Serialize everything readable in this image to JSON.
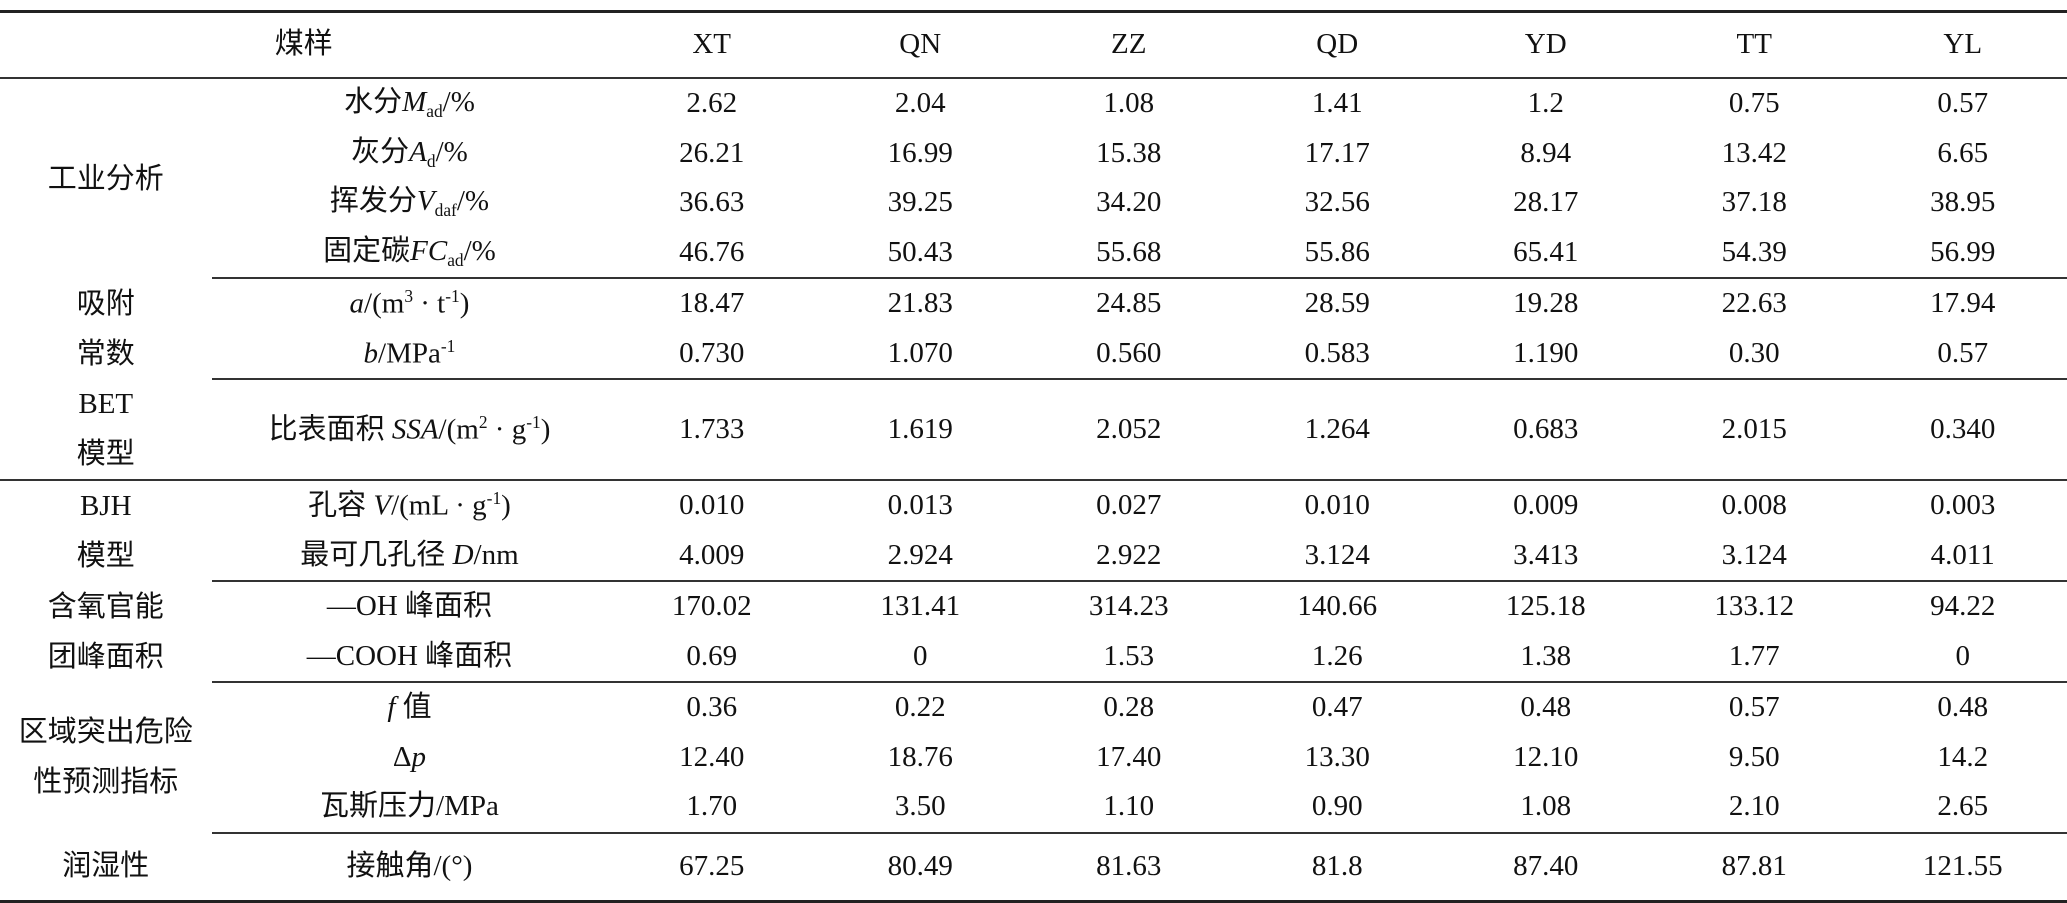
{
  "header": {
    "label": "煤样",
    "samples": [
      "XT",
      "QN",
      "ZZ",
      "QD",
      "YD",
      "TT",
      "YL"
    ]
  },
  "sections": [
    {
      "group": [
        "工业分析"
      ],
      "rows": [
        {
          "label": [
            {
              "t": "水分"
            },
            {
              "t": "M",
              "i": true
            },
            {
              "t": "ad",
              "sub": true
            },
            {
              "t": "/%"
            }
          ],
          "values": [
            "2.62",
            "2.04",
            "1.08",
            "1.41",
            "1.2",
            "0.75",
            "0.57"
          ]
        },
        {
          "label": [
            {
              "t": "灰分"
            },
            {
              "t": "A",
              "i": true
            },
            {
              "t": "d",
              "sub": true
            },
            {
              "t": "/%"
            }
          ],
          "values": [
            "26.21",
            "16.99",
            "15.38",
            "17.17",
            "8.94",
            "13.42",
            "6.65"
          ]
        },
        {
          "label": [
            {
              "t": "挥发分"
            },
            {
              "t": "V",
              "i": true
            },
            {
              "t": "daf",
              "sub": true
            },
            {
              "t": "/%"
            }
          ],
          "values": [
            "36.63",
            "39.25",
            "34.20",
            "32.56",
            "28.17",
            "37.18",
            "38.95"
          ]
        },
        {
          "label": [
            {
              "t": "固定碳"
            },
            {
              "t": "FC",
              "i": true
            },
            {
              "t": "ad",
              "sub": true
            },
            {
              "t": "/%"
            }
          ],
          "values": [
            "46.76",
            "50.43",
            "55.68",
            "55.86",
            "65.41",
            "54.39",
            "56.99"
          ]
        }
      ]
    },
    {
      "group": [
        "吸附",
        "常数"
      ],
      "rows": [
        {
          "label": [
            {
              "t": "a",
              "i": true
            },
            {
              "t": "/(m"
            },
            {
              "t": "3",
              "sup": true
            },
            {
              "t": " · t"
            },
            {
              "t": "-1",
              "sup": true
            },
            {
              "t": ")"
            }
          ],
          "values": [
            "18.47",
            "21.83",
            "24.85",
            "28.59",
            "19.28",
            "22.63",
            "17.94"
          ]
        },
        {
          "label": [
            {
              "t": "b",
              "i": true
            },
            {
              "t": "/MPa"
            },
            {
              "t": "-1",
              "sup": true
            }
          ],
          "values": [
            "0.730",
            "1.070",
            "0.560",
            "0.583",
            "1.190",
            "0.30",
            "0.57"
          ]
        }
      ]
    },
    {
      "group": [
        "BET",
        "模型"
      ],
      "tall": true,
      "rows": [
        {
          "label": [
            {
              "t": "比表面积 "
            },
            {
              "t": "SSA",
              "i": true
            },
            {
              "t": "/(m"
            },
            {
              "t": "2",
              "sup": true
            },
            {
              "t": " · g"
            },
            {
              "t": "-1",
              "sup": true
            },
            {
              "t": ")"
            }
          ],
          "values": [
            "1.733",
            "1.619",
            "2.052",
            "1.264",
            "0.683",
            "2.015",
            "0.340"
          ]
        }
      ]
    },
    {
      "group": [
        "BJH",
        "模型"
      ],
      "rows": [
        {
          "label": [
            {
              "t": "孔容 "
            },
            {
              "t": "V",
              "i": true
            },
            {
              "t": "/(mL · g"
            },
            {
              "t": "-1",
              "sup": true
            },
            {
              "t": ")"
            }
          ],
          "values": [
            "0.010",
            "0.013",
            "0.027",
            "0.010",
            "0.009",
            "0.008",
            "0.003"
          ]
        },
        {
          "label": [
            {
              "t": "最可几孔径 "
            },
            {
              "t": "D",
              "i": true
            },
            {
              "t": "/nm"
            }
          ],
          "values": [
            "4.009",
            "2.924",
            "2.922",
            "3.124",
            "3.413",
            "3.124",
            "4.011"
          ]
        }
      ]
    },
    {
      "group": [
        "含氧官能",
        "团峰面积"
      ],
      "rows": [
        {
          "label": [
            {
              "t": "—OH 峰面积"
            }
          ],
          "values": [
            "170.02",
            "131.41",
            "314.23",
            "140.66",
            "125.18",
            "133.12",
            "94.22"
          ]
        },
        {
          "label": [
            {
              "t": "—COOH 峰面积"
            }
          ],
          "values": [
            "0.69",
            "0",
            "1.53",
            "1.26",
            "1.38",
            "1.77",
            "0"
          ]
        }
      ]
    },
    {
      "group": [
        "区域突出危险",
        "性预测指标"
      ],
      "rows": [
        {
          "label": [
            {
              "t": "f",
              "i": true
            },
            {
              "t": " 值"
            }
          ],
          "values": [
            "0.36",
            "0.22",
            "0.28",
            "0.47",
            "0.48",
            "0.57",
            "0.48"
          ]
        },
        {
          "label": [
            {
              "t": "Δ"
            },
            {
              "t": "p",
              "i": true
            }
          ],
          "values": [
            "12.40",
            "18.76",
            "17.40",
            "13.30",
            "12.10",
            "9.50",
            "14.2"
          ]
        },
        {
          "label": [
            {
              "t": "瓦斯压力/MPa"
            }
          ],
          "values": [
            "1.70",
            "3.50",
            "1.10",
            "0.90",
            "1.08",
            "2.10",
            "2.65"
          ]
        }
      ]
    },
    {
      "group": [
        "润湿性"
      ],
      "wet": true,
      "rows": [
        {
          "label": [
            {
              "t": "接触角/(°)"
            }
          ],
          "values": [
            "67.25",
            "80.49",
            "81.63",
            "81.8",
            "87.40",
            "87.81",
            "121.55"
          ]
        }
      ]
    }
  ]
}
